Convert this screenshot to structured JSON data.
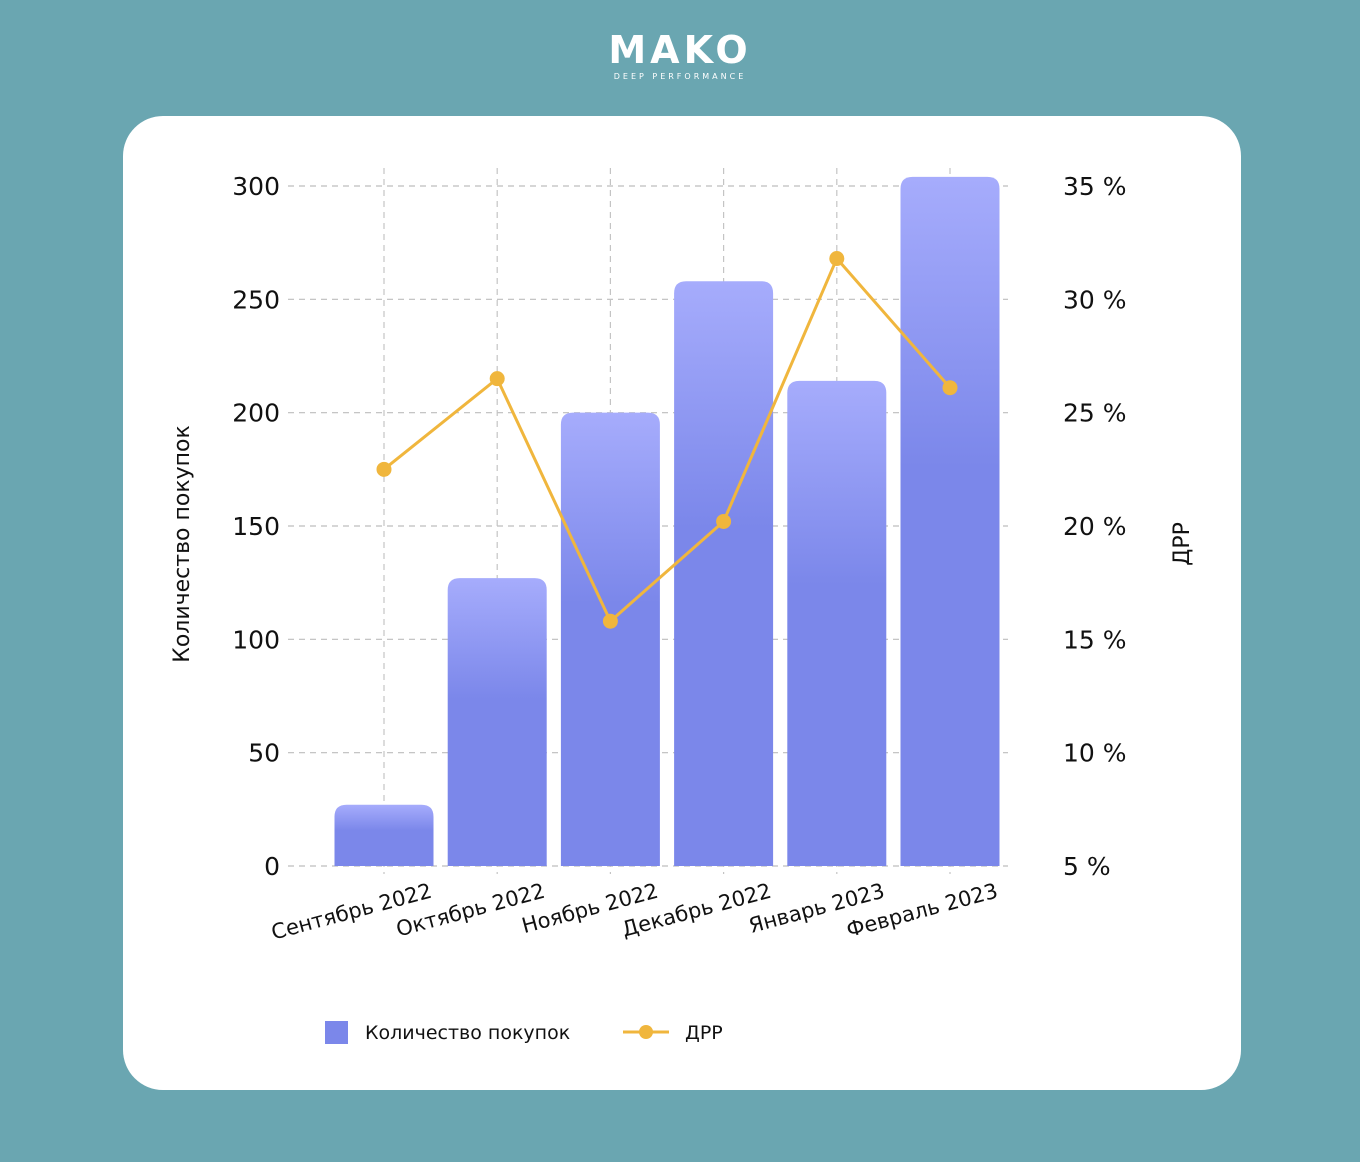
{
  "brand": {
    "name": "MAKO",
    "tagline": "DEEP PERFORMANCE"
  },
  "chart_data": {
    "type": "bar",
    "categories": [
      "Сентябрь 2022",
      "Октябрь 2022",
      "Ноябрь 2022",
      "Декабрь 2022",
      "Январь 2023",
      "Февраль 2023"
    ],
    "series": [
      {
        "name": "Количество покупок",
        "type": "bar",
        "axis": "left",
        "color": "#7b87ea",
        "color_top": "#a6acfc",
        "values": [
          27,
          127,
          200,
          258,
          214,
          304
        ]
      },
      {
        "name": "ДРР",
        "type": "line",
        "axis": "right",
        "color": "#f0b63d",
        "values": [
          22.5,
          26.5,
          15.8,
          20.2,
          31.8,
          26.1
        ]
      }
    ],
    "ylabel_left": "Количество покупок",
    "ylabel_right": "ДРР",
    "yticks_left": [
      "0",
      "50",
      "100",
      "150",
      "200",
      "250",
      "300"
    ],
    "yticks_right": [
      "5 %",
      "10 %",
      "15 %",
      "20 %",
      "25 %",
      "30 %",
      "35 %"
    ],
    "ylim_left": [
      0,
      300
    ],
    "ylim_right": [
      5,
      35
    ],
    "grid": true,
    "legend_position": "bottom"
  }
}
